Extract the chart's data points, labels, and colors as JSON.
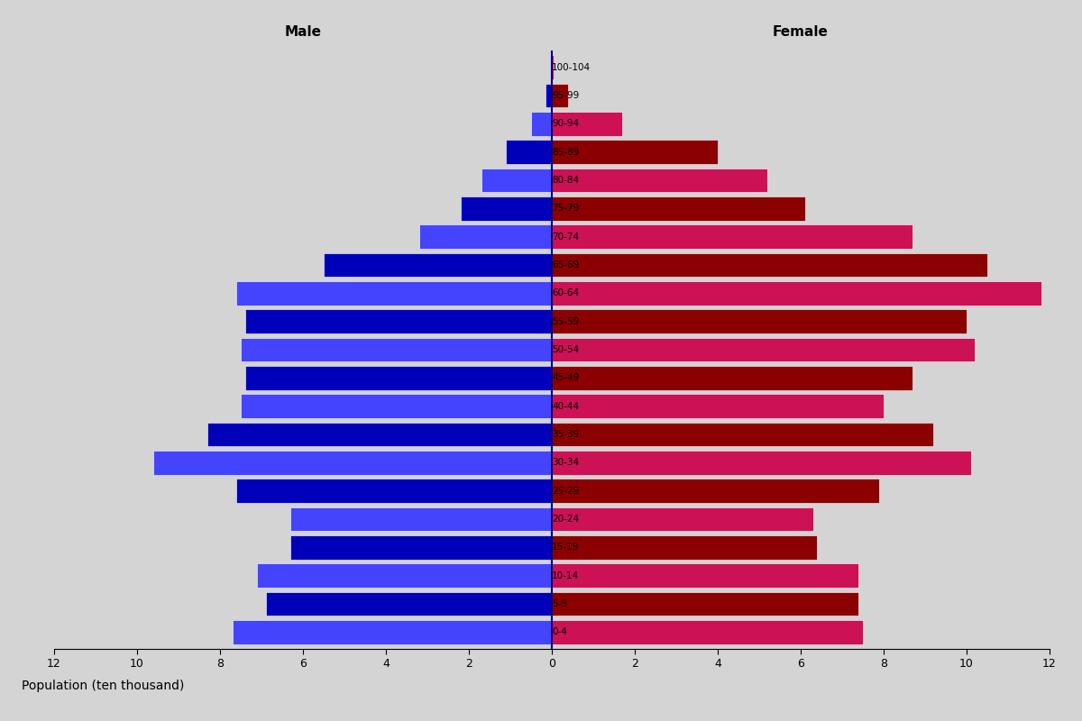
{
  "age_groups": [
    "0-4",
    "5-9",
    "10-14",
    "15-19",
    "20-24",
    "25-29",
    "30-34",
    "35-39",
    "40-44",
    "45-49",
    "50-54",
    "55-59",
    "60-64",
    "65-69",
    "70-74",
    "75-79",
    "80-84",
    "85-89",
    "90-94",
    "95-99",
    "100-104"
  ],
  "male_values": [
    7.7,
    6.9,
    7.1,
    6.3,
    6.3,
    7.6,
    9.6,
    8.3,
    7.5,
    7.4,
    7.5,
    7.4,
    7.6,
    5.5,
    3.2,
    2.2,
    1.7,
    1.1,
    0.5,
    0.15,
    0.05
  ],
  "female_values": [
    7.5,
    7.4,
    7.4,
    6.4,
    6.3,
    7.9,
    10.1,
    9.2,
    8.0,
    8.7,
    10.2,
    10.0,
    11.8,
    10.5,
    8.7,
    6.1,
    5.2,
    4.0,
    1.7,
    0.4,
    0.05
  ],
  "male_dark": "#0000bb",
  "male_light": "#4444ff",
  "female_dark": "#8b0000",
  "female_light": "#cc1155",
  "background_color": "#d4d4d4",
  "xlim": 12,
  "xlabel": "Population (ten thousand)",
  "male_label": "Male",
  "female_label": "Female",
  "tick_values": [
    0,
    2,
    4,
    6,
    8,
    10,
    12
  ],
  "bar_height": 0.85
}
